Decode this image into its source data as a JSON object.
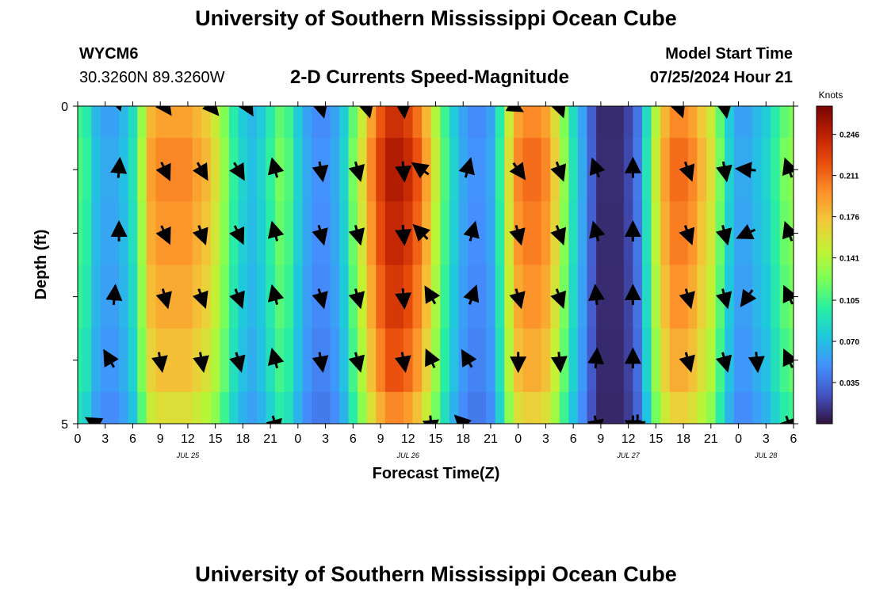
{
  "header": {
    "title": "University of Southern Mississippi Ocean Cube",
    "station_id": "WYCM6",
    "location": "30.3260N  89.3260W",
    "chart_title": "2-D Currents Speed-Magnitude",
    "model_start_label": "Model Start Time",
    "model_start_value": "07/25/2024 Hour 21",
    "footer_title": "University of Southern Mississippi Ocean Cube"
  },
  "colors": {
    "palette": [
      "#30123b",
      "#4454c4",
      "#4490fe",
      "#1fc8de",
      "#29efa2",
      "#7dff56",
      "#c1f334",
      "#f1ca3a",
      "#fe922a",
      "#ea4f0d",
      "#be2102",
      "#7a0403"
    ],
    "arrow": "#000000"
  },
  "chart_data": {
    "type": "heatmap",
    "title": "2-D Currents Speed-Magnitude",
    "xlabel": "Forecast Time(Z)",
    "ylabel": "Depth (ft)",
    "x_hours": [
      0,
      3,
      6,
      9,
      12,
      15,
      18,
      21,
      24,
      27,
      30,
      33,
      36,
      39,
      42,
      45,
      48,
      51,
      54,
      57,
      60,
      63,
      66,
      69,
      72,
      75,
      78
    ],
    "x_tick_labels": [
      "0",
      "3",
      "6",
      "9",
      "12",
      "15",
      "18",
      "21",
      "0",
      "3",
      "6",
      "9",
      "12",
      "15",
      "18",
      "21",
      "0",
      "3",
      "6",
      "9",
      "12",
      "15",
      "18",
      "21",
      "0",
      "3",
      "6"
    ],
    "date_labels": [
      {
        "hour": 12,
        "label": "JUL 25"
      },
      {
        "hour": 36,
        "label": "JUL 26"
      },
      {
        "hour": 60,
        "label": "JUL 27"
      },
      {
        "hour": 75,
        "label": "JUL 28"
      }
    ],
    "xlim": [
      0,
      78
    ],
    "ylim": [
      0,
      5
    ],
    "y_tick_labels": [
      "0",
      "5"
    ],
    "colorbar": {
      "label": "Knots",
      "range": [
        0.0,
        0.27
      ],
      "ticks": [
        0.035,
        0.07,
        0.105,
        0.141,
        0.176,
        0.211,
        0.246
      ]
    },
    "depth_rows": 5,
    "hours": [
      0,
      1,
      2,
      3,
      4,
      5,
      6,
      7,
      8,
      9,
      10,
      11,
      12,
      13,
      14,
      15,
      16,
      17,
      18,
      19,
      20,
      21,
      22,
      23,
      24,
      25,
      26,
      27,
      28,
      29,
      30,
      31,
      32,
      33,
      34,
      35,
      36,
      37,
      38,
      39,
      40,
      41,
      42,
      43,
      44,
      45,
      46,
      47,
      48,
      49,
      50,
      51,
      52,
      53,
      54,
      55,
      56,
      57,
      58,
      59,
      60,
      61,
      62,
      63,
      64,
      65,
      66,
      67,
      68,
      69,
      70,
      71,
      72,
      73,
      74,
      75,
      76,
      77,
      78
    ],
    "speed_profile_knots": [
      0.11,
      0.1,
      0.07,
      0.06,
      0.06,
      0.07,
      0.09,
      0.14,
      0.19,
      0.2,
      0.2,
      0.2,
      0.2,
      0.19,
      0.18,
      0.16,
      0.13,
      0.1,
      0.08,
      0.07,
      0.08,
      0.1,
      0.12,
      0.11,
      0.08,
      0.06,
      0.05,
      0.05,
      0.06,
      0.08,
      0.12,
      0.16,
      0.2,
      0.23,
      0.25,
      0.25,
      0.24,
      0.22,
      0.19,
      0.15,
      0.11,
      0.08,
      0.06,
      0.05,
      0.05,
      0.06,
      0.1,
      0.16,
      0.2,
      0.21,
      0.21,
      0.2,
      0.17,
      0.13,
      0.09,
      0.06,
      0.03,
      0.01,
      0.01,
      0.01,
      0.02,
      0.04,
      0.09,
      0.15,
      0.19,
      0.21,
      0.21,
      0.2,
      0.18,
      0.16,
      0.12,
      0.08,
      0.06,
      0.06,
      0.07,
      0.08,
      0.1,
      0.12,
      0.13
    ],
    "depth_factors": [
      0.95,
      1.0,
      0.97,
      0.93,
      0.88,
      0.8
    ],
    "vectors": [
      {
        "hour": 4.5,
        "depth": 0,
        "dir_deg": 160,
        "len": 0.1
      },
      {
        "hour": 9.5,
        "depth": 0,
        "dir_deg": 145,
        "len": 0.7
      },
      {
        "hour": 14.5,
        "depth": 0,
        "dir_deg": 140,
        "len": 0.8
      },
      {
        "hour": 18.5,
        "depth": 0,
        "dir_deg": 150,
        "len": 0.7
      },
      {
        "hour": 26.5,
        "depth": 0,
        "dir_deg": 165,
        "len": 0.8
      },
      {
        "hour": 31.5,
        "depth": 0,
        "dir_deg": 165,
        "len": 0.8
      },
      {
        "hour": 35.5,
        "depth": 0,
        "dir_deg": 175,
        "len": 0.8
      },
      {
        "hour": 47.5,
        "depth": 0,
        "dir_deg": 120,
        "len": 0.7
      },
      {
        "hour": 52.5,
        "depth": 0,
        "dir_deg": 160,
        "len": 0.8
      },
      {
        "hour": 65.5,
        "depth": 0,
        "dir_deg": 160,
        "len": 0.8
      },
      {
        "hour": 70.5,
        "depth": 0,
        "dir_deg": 170,
        "len": 0.8
      },
      {
        "hour": 4.5,
        "depth": 1,
        "dir_deg": 5,
        "len": 0.8
      },
      {
        "hour": 9.5,
        "depth": 1,
        "dir_deg": 155,
        "len": 0.8
      },
      {
        "hour": 13.5,
        "depth": 1,
        "dir_deg": 150,
        "len": 0.8
      },
      {
        "hour": 17.5,
        "depth": 1,
        "dir_deg": 150,
        "len": 0.8
      },
      {
        "hour": 21.5,
        "depth": 1,
        "dir_deg": 345,
        "len": 0.8
      },
      {
        "hour": 26.5,
        "depth": 1,
        "dir_deg": 170,
        "len": 0.8
      },
      {
        "hour": 30.5,
        "depth": 1,
        "dir_deg": 165,
        "len": 0.8
      },
      {
        "hour": 35.5,
        "depth": 1,
        "dir_deg": 175,
        "len": 0.8
      },
      {
        "hour": 37.5,
        "depth": 1,
        "dir_deg": 305,
        "len": 0.8
      },
      {
        "hour": 42.5,
        "depth": 1,
        "dir_deg": 15,
        "len": 0.8
      },
      {
        "hour": 48.0,
        "depth": 1,
        "dir_deg": 145,
        "len": 0.8
      },
      {
        "hour": 52.5,
        "depth": 1,
        "dir_deg": 160,
        "len": 0.8
      },
      {
        "hour": 56.5,
        "depth": 1,
        "dir_deg": 340,
        "len": 0.8
      },
      {
        "hour": 60.5,
        "depth": 1,
        "dir_deg": 0,
        "len": 0.8
      },
      {
        "hour": 66.5,
        "depth": 1,
        "dir_deg": 160,
        "len": 0.8
      },
      {
        "hour": 70.5,
        "depth": 1,
        "dir_deg": 170,
        "len": 0.8
      },
      {
        "hour": 73.0,
        "depth": 1,
        "dir_deg": 275,
        "len": 0.8
      },
      {
        "hour": 77.5,
        "depth": 1,
        "dir_deg": 340,
        "len": 0.8
      },
      {
        "hour": 4.5,
        "depth": 2,
        "dir_deg": 0,
        "len": 0.8
      },
      {
        "hour": 9.5,
        "depth": 2,
        "dir_deg": 155,
        "len": 0.8
      },
      {
        "hour": 13.5,
        "depth": 2,
        "dir_deg": 160,
        "len": 0.8
      },
      {
        "hour": 17.5,
        "depth": 2,
        "dir_deg": 155,
        "len": 0.8
      },
      {
        "hour": 21.5,
        "depth": 2,
        "dir_deg": 345,
        "len": 0.8
      },
      {
        "hour": 26.5,
        "depth": 2,
        "dir_deg": 165,
        "len": 0.8
      },
      {
        "hour": 30.5,
        "depth": 2,
        "dir_deg": 165,
        "len": 0.8
      },
      {
        "hour": 35.5,
        "depth": 2,
        "dir_deg": 175,
        "len": 0.8
      },
      {
        "hour": 37.5,
        "depth": 2,
        "dir_deg": 315,
        "len": 0.8
      },
      {
        "hour": 43.0,
        "depth": 2,
        "dir_deg": 15,
        "len": 0.8
      },
      {
        "hour": 48.0,
        "depth": 2,
        "dir_deg": 165,
        "len": 0.8
      },
      {
        "hour": 52.5,
        "depth": 2,
        "dir_deg": 160,
        "len": 0.8
      },
      {
        "hour": 56.5,
        "depth": 2,
        "dir_deg": 345,
        "len": 0.8
      },
      {
        "hour": 60.5,
        "depth": 2,
        "dir_deg": 0,
        "len": 0.8
      },
      {
        "hour": 66.5,
        "depth": 2,
        "dir_deg": 160,
        "len": 0.8
      },
      {
        "hour": 70.5,
        "depth": 2,
        "dir_deg": 165,
        "len": 0.8
      },
      {
        "hour": 73.0,
        "depth": 2,
        "dir_deg": 245,
        "len": 0.8
      },
      {
        "hour": 77.5,
        "depth": 2,
        "dir_deg": 340,
        "len": 0.8
      },
      {
        "hour": 4.0,
        "depth": 3,
        "dir_deg": 5,
        "len": 0.8
      },
      {
        "hour": 9.5,
        "depth": 3,
        "dir_deg": 165,
        "len": 0.8
      },
      {
        "hour": 13.5,
        "depth": 3,
        "dir_deg": 160,
        "len": 0.8
      },
      {
        "hour": 17.5,
        "depth": 3,
        "dir_deg": 160,
        "len": 0.8
      },
      {
        "hour": 21.5,
        "depth": 3,
        "dir_deg": 345,
        "len": 0.8
      },
      {
        "hour": 26.5,
        "depth": 3,
        "dir_deg": 165,
        "len": 0.8
      },
      {
        "hour": 30.5,
        "depth": 3,
        "dir_deg": 165,
        "len": 0.8
      },
      {
        "hour": 35.5,
        "depth": 3,
        "dir_deg": 175,
        "len": 0.8
      },
      {
        "hour": 38.5,
        "depth": 3,
        "dir_deg": 330,
        "len": 0.8
      },
      {
        "hour": 43.0,
        "depth": 3,
        "dir_deg": 20,
        "len": 0.8
      },
      {
        "hour": 48.0,
        "depth": 3,
        "dir_deg": 165,
        "len": 0.8
      },
      {
        "hour": 52.5,
        "depth": 3,
        "dir_deg": 160,
        "len": 0.8
      },
      {
        "hour": 56.5,
        "depth": 3,
        "dir_deg": 355,
        "len": 0.8
      },
      {
        "hour": 60.5,
        "depth": 3,
        "dir_deg": 0,
        "len": 0.8
      },
      {
        "hour": 66.5,
        "depth": 3,
        "dir_deg": 165,
        "len": 0.8
      },
      {
        "hour": 70.5,
        "depth": 3,
        "dir_deg": 165,
        "len": 0.8
      },
      {
        "hour": 73.0,
        "depth": 3,
        "dir_deg": 215,
        "len": 0.8
      },
      {
        "hour": 77.5,
        "depth": 3,
        "dir_deg": 335,
        "len": 0.8
      },
      {
        "hour": 3.5,
        "depth": 4,
        "dir_deg": 330,
        "len": 0.8
      },
      {
        "hour": 9.0,
        "depth": 4,
        "dir_deg": 170,
        "len": 0.8
      },
      {
        "hour": 13.5,
        "depth": 4,
        "dir_deg": 170,
        "len": 0.8
      },
      {
        "hour": 17.5,
        "depth": 4,
        "dir_deg": 165,
        "len": 0.8
      },
      {
        "hour": 21.5,
        "depth": 4,
        "dir_deg": 345,
        "len": 0.8
      },
      {
        "hour": 26.5,
        "depth": 4,
        "dir_deg": 170,
        "len": 0.8
      },
      {
        "hour": 30.5,
        "depth": 4,
        "dir_deg": 165,
        "len": 0.8
      },
      {
        "hour": 35.5,
        "depth": 4,
        "dir_deg": 170,
        "len": 0.8
      },
      {
        "hour": 38.5,
        "depth": 4,
        "dir_deg": 335,
        "len": 0.8
      },
      {
        "hour": 42.5,
        "depth": 4,
        "dir_deg": 330,
        "len": 0.8
      },
      {
        "hour": 48.0,
        "depth": 4,
        "dir_deg": 180,
        "len": 0.8
      },
      {
        "hour": 52.5,
        "depth": 4,
        "dir_deg": 175,
        "len": 0.8
      },
      {
        "hour": 56.5,
        "depth": 4,
        "dir_deg": 5,
        "len": 0.8
      },
      {
        "hour": 60.5,
        "depth": 4,
        "dir_deg": 0,
        "len": 0.8
      },
      {
        "hour": 66.5,
        "depth": 4,
        "dir_deg": 165,
        "len": 0.8
      },
      {
        "hour": 70.5,
        "depth": 4,
        "dir_deg": 165,
        "len": 0.8
      },
      {
        "hour": 74.0,
        "depth": 4,
        "dir_deg": 175,
        "len": 0.8
      },
      {
        "hour": 77.5,
        "depth": 4,
        "dir_deg": 335,
        "len": 0.8
      },
      {
        "hour": 2.0,
        "depth": 5,
        "dir_deg": 300,
        "len": 0.8
      },
      {
        "hour": 21.5,
        "depth": 5,
        "dir_deg": 165,
        "len": 0.8
      },
      {
        "hour": 38.5,
        "depth": 5,
        "dir_deg": 175,
        "len": 0.8
      },
      {
        "hour": 42.0,
        "depth": 5,
        "dir_deg": 315,
        "len": 0.8
      },
      {
        "hour": 56.5,
        "depth": 5,
        "dir_deg": 170,
        "len": 0.8
      },
      {
        "hour": 60.5,
        "depth": 5,
        "dir_deg": 180,
        "len": 0.8
      },
      {
        "hour": 61.0,
        "depth": 5,
        "dir_deg": 180,
        "len": 0.9
      },
      {
        "hour": 77.5,
        "depth": 5,
        "dir_deg": 160,
        "len": 0.8
      }
    ]
  }
}
